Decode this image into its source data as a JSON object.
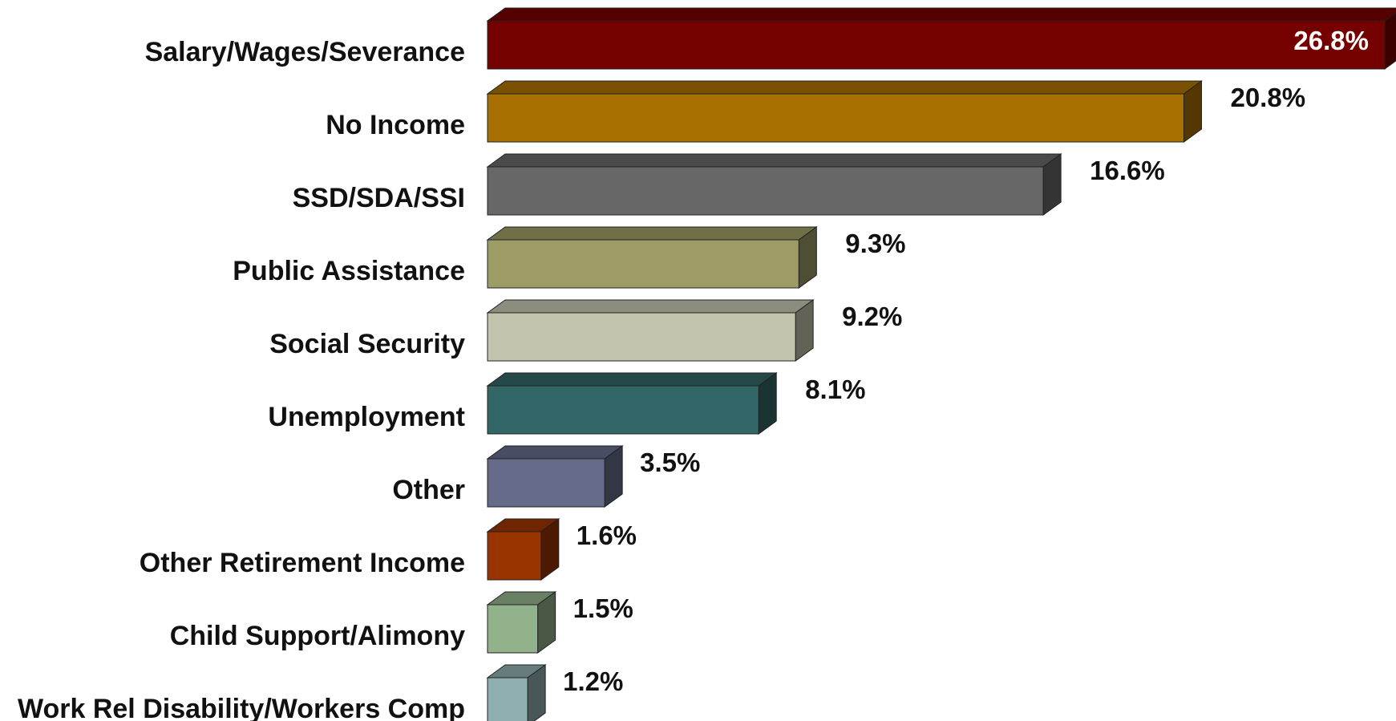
{
  "chart_data": {
    "type": "bar",
    "orientation": "horizontal",
    "style": "3d",
    "categories": [
      "Salary/Wages/Severance",
      "No Income",
      "SSD/SDA/SSI",
      "Public Assistance",
      "Social Security",
      "Unemployment",
      "Other",
      "Other Retirement Income",
      "Child Support/Alimony",
      "Work Rel Disability/Workers Comp"
    ],
    "values": [
      26.8,
      20.8,
      16.6,
      9.3,
      9.2,
      8.1,
      3.5,
      1.6,
      1.5,
      1.2
    ],
    "value_labels": [
      "26.8%",
      "20.8%",
      "16.6%",
      "9.3%",
      "9.2%",
      "8.1%",
      "3.5%",
      "1.6%",
      "1.5%",
      "1.2%"
    ],
    "colors": [
      "#750000",
      "#A87000",
      "#676767",
      "#9C9C64",
      "#C4C4AE",
      "#336666",
      "#666B89",
      "#993300",
      "#92B28C",
      "#8FAEAE"
    ],
    "title": "",
    "xlabel": "",
    "ylabel": "",
    "xlim": [
      0,
      26.8
    ],
    "grid": false,
    "legend": "none"
  }
}
